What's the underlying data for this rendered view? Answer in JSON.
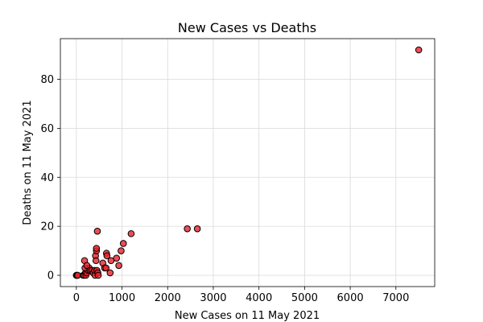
{
  "chart_data": {
    "type": "scatter",
    "title": "New Cases vs Deaths",
    "xlabel": "New Cases on 11 May 2021",
    "ylabel": "Deaths on 11 May 2021",
    "xlim": [
      -350,
      7850
    ],
    "ylim": [
      -4.6,
      96.6
    ],
    "xticks": [
      0,
      1000,
      2000,
      3000,
      4000,
      5000,
      6000,
      7000
    ],
    "yticks": [
      0,
      20,
      40,
      60,
      80
    ],
    "grid": true,
    "marker_color": "#e8202a",
    "marker_alpha": 0.8,
    "marker_edge": "#000000",
    "points": [
      {
        "x": 0,
        "y": 0
      },
      {
        "x": 10,
        "y": 0
      },
      {
        "x": 20,
        "y": 0
      },
      {
        "x": 30,
        "y": 0
      },
      {
        "x": 150,
        "y": 0
      },
      {
        "x": 170,
        "y": 0
      },
      {
        "x": 200,
        "y": 1
      },
      {
        "x": 210,
        "y": 0
      },
      {
        "x": 230,
        "y": 1
      },
      {
        "x": 260,
        "y": 2
      },
      {
        "x": 280,
        "y": 3
      },
      {
        "x": 190,
        "y": 3
      },
      {
        "x": 180,
        "y": 6
      },
      {
        "x": 230,
        "y": 4
      },
      {
        "x": 300,
        "y": 2
      },
      {
        "x": 340,
        "y": 2
      },
      {
        "x": 370,
        "y": 1
      },
      {
        "x": 400,
        "y": 2
      },
      {
        "x": 410,
        "y": 0
      },
      {
        "x": 420,
        "y": 8
      },
      {
        "x": 430,
        "y": 6
      },
      {
        "x": 440,
        "y": 10
      },
      {
        "x": 440,
        "y": 11
      },
      {
        "x": 450,
        "y": 2
      },
      {
        "x": 460,
        "y": 18
      },
      {
        "x": 470,
        "y": 1
      },
      {
        "x": 480,
        "y": 0
      },
      {
        "x": 580,
        "y": 5
      },
      {
        "x": 620,
        "y": 3
      },
      {
        "x": 650,
        "y": 3
      },
      {
        "x": 660,
        "y": 9
      },
      {
        "x": 670,
        "y": 8
      },
      {
        "x": 740,
        "y": 1
      },
      {
        "x": 760,
        "y": 6
      },
      {
        "x": 880,
        "y": 7
      },
      {
        "x": 930,
        "y": 4
      },
      {
        "x": 980,
        "y": 10
      },
      {
        "x": 1030,
        "y": 13
      },
      {
        "x": 1200,
        "y": 17
      },
      {
        "x": 2430,
        "y": 19
      },
      {
        "x": 2650,
        "y": 19
      },
      {
        "x": 7500,
        "y": 92
      }
    ]
  }
}
